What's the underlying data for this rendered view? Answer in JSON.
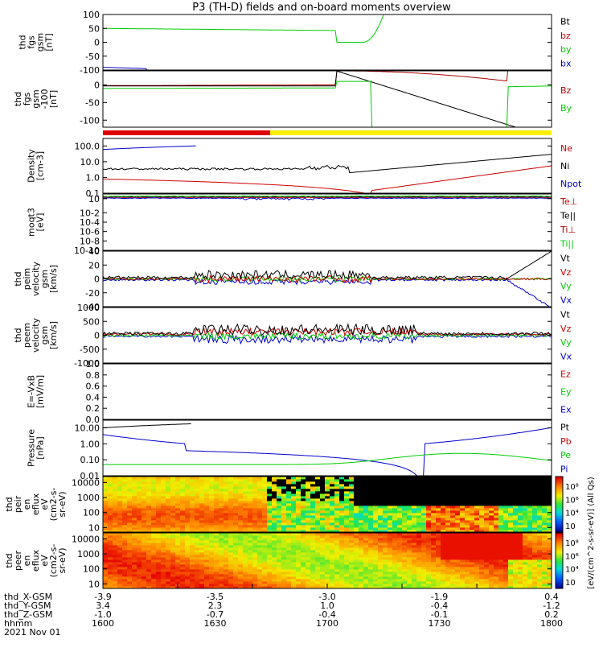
{
  "title": "P3 (TH-D) fields and on-board moments overview",
  "chart_data": [
    {
      "type": "line",
      "ylabel": [
        "thd",
        "fgs",
        "gsm",
        "[nT]"
      ],
      "ylim": [
        -100,
        100
      ],
      "log": false,
      "ticks": [
        "100",
        "50",
        "0",
        "-50",
        "-100"
      ],
      "tickvals": [
        100,
        50,
        0,
        -50,
        -100
      ],
      "series": [
        {
          "name": "Bt",
          "color": "#000000"
        },
        {
          "name": "bz",
          "color": "#cc0000"
        },
        {
          "name": "by",
          "color": "#00cc00"
        },
        {
          "name": "bx",
          "color": "#0000cc"
        }
      ]
    },
    {
      "type": "line",
      "ylabel": [
        "thd",
        "fgs",
        "gsm",
        "-100",
        "[nT]"
      ],
      "ylim": [
        -120,
        40
      ],
      "log": false,
      "ticks": [
        "0",
        "-50",
        "-100"
      ],
      "tickvals": [
        0,
        -50,
        -100
      ],
      "series": [
        {
          "name": "Bz",
          "color": "#aa0000"
        },
        {
          "name": "By",
          "color": "#00cc00"
        }
      ]
    },
    {
      "type": "line",
      "ylabel": [
        "Density",
        "[cm-3]"
      ],
      "ylim": [
        0.1,
        300
      ],
      "log": true,
      "ticks": [
        "100.0",
        "10.0",
        "1.0",
        "0.1"
      ],
      "tickvals": [
        100,
        10,
        1,
        0.1
      ],
      "series": [
        {
          "name": "Ne",
          "color": "#cc0000"
        },
        {
          "name": "Ni",
          "color": "#000000"
        },
        {
          "name": "Npot",
          "color": "#0000cc"
        }
      ]
    },
    {
      "type": "line",
      "ylabel": [
        "moqt3",
        "[eV]"
      ],
      "ylim": [
        1e-10,
        100
      ],
      "log": true,
      "ticks": [
        "10",
        "10-2",
        "10-4",
        "10-6",
        "10-8",
        "10-10"
      ],
      "tickvals": [
        10,
        0.01,
        0.0001,
        1e-06,
        1e-08,
        1e-10
      ],
      "series": [
        {
          "name": "Te⊥",
          "color": "#cc0000"
        },
        {
          "name": "Te||",
          "color": "#000000"
        },
        {
          "name": "Ti⊥",
          "color": "#aa0000"
        },
        {
          "name": "Ti||",
          "color": "#00cc00"
        }
      ]
    },
    {
      "type": "line",
      "ylabel": [
        "thd",
        "peim",
        "velocity",
        "gsm",
        "[km/s]"
      ],
      "ylim": [
        -40,
        40
      ],
      "log": false,
      "ticks": [
        "40",
        "20",
        "0",
        "-20",
        "-40"
      ],
      "tickvals": [
        40,
        20,
        0,
        -20,
        -40
      ],
      "series": [
        {
          "name": "Vt",
          "color": "#000000"
        },
        {
          "name": "Vz",
          "color": "#cc0000"
        },
        {
          "name": "Vy",
          "color": "#00cc00"
        },
        {
          "name": "Vx",
          "color": "#0000cc"
        }
      ]
    },
    {
      "type": "line",
      "ylabel": [
        "thd",
        "peem",
        "velocity",
        "gsm",
        "[km/s]"
      ],
      "ylim": [
        -1000,
        1000
      ],
      "log": false,
      "ticks": [
        "1000",
        "500",
        "0",
        "-500",
        "-1000"
      ],
      "tickvals": [
        1000,
        500,
        0,
        -500,
        -1000
      ],
      "series": [
        {
          "name": "Vt",
          "color": "#000000"
        },
        {
          "name": "Vz",
          "color": "#cc0000"
        },
        {
          "name": "Vy",
          "color": "#00cc00"
        },
        {
          "name": "Vx",
          "color": "#0000cc"
        }
      ]
    },
    {
      "type": "line",
      "ylabel": [
        "E=-VxB",
        "[mV/m]"
      ],
      "ylim": [
        0,
        1
      ],
      "log": false,
      "ticks": [
        "1.0",
        "0.8",
        "0.6",
        "0.4",
        "0.2",
        "0.0"
      ],
      "tickvals": [
        1,
        0.8,
        0.6,
        0.4,
        0.2,
        0
      ],
      "series": [
        {
          "name": "Ez",
          "color": "#cc0000"
        },
        {
          "name": "Ey",
          "color": "#00cc00"
        },
        {
          "name": "Ex",
          "color": "#0000cc"
        }
      ]
    },
    {
      "type": "line",
      "ylabel": [
        "Pressure",
        "[nPa]"
      ],
      "ylim": [
        0.01,
        30
      ],
      "log": true,
      "ticks": [
        "10.00",
        "1.00",
        "0.10",
        "0.01"
      ],
      "tickvals": [
        10,
        1,
        0.1,
        0.01
      ],
      "series": [
        {
          "name": "Pt",
          "color": "#000000"
        },
        {
          "name": "Pb",
          "color": "#cc0000"
        },
        {
          "name": "Pe",
          "color": "#00cc00"
        },
        {
          "name": "Pi",
          "color": "#0000cc"
        }
      ]
    },
    {
      "type": "heatmap",
      "ylabel": [
        "thd",
        "peir",
        "en",
        "eflux",
        "eV",
        "(cm2-s-",
        "sr-eV)"
      ],
      "ylim": [
        5,
        25000
      ],
      "log": true,
      "ticks": [
        "10000",
        "1000",
        "100",
        "10"
      ],
      "tickvals": [
        10000,
        1000,
        100,
        10
      ]
    },
    {
      "type": "heatmap",
      "ylabel": [
        "thd",
        "peer",
        "en",
        "eflux",
        "eV",
        "(cm2-s-",
        "sr-eV)"
      ],
      "ylim": [
        5,
        25000
      ],
      "log": true,
      "ticks": [
        "10000",
        "1000",
        "100",
        "10"
      ],
      "tickvals": [
        10000,
        1000,
        100,
        10
      ]
    }
  ],
  "colorbar": {
    "ticks": [
      "10⁸",
      "10⁶",
      "10⁴",
      "10⁲"
    ],
    "label": "[eV/(cm^2-s-sr-eV)] (All Qs)"
  },
  "xaxis": {
    "tick_count": 7,
    "row_labels": [
      "thd_X-GSM",
      "thd_Y-GSM",
      "thd_Z-GSM",
      "hhmm",
      "2021 Nov 01"
    ],
    "rows": [
      [
        "-3.9",
        "-3.5",
        "-3.0",
        "-1.9",
        "0.4"
      ],
      [
        "3.4",
        "2.3",
        "1.0",
        "-0.4",
        "-1.2"
      ],
      [
        "-1.0",
        "-0.7",
        "-0.4",
        "-0.1",
        "0.2"
      ],
      [
        "1600",
        "1630",
        "1700",
        "1730",
        "1800"
      ]
    ]
  },
  "colors": {
    "mode_red": "#dd0000",
    "mode_yellow": "#ffee00"
  }
}
